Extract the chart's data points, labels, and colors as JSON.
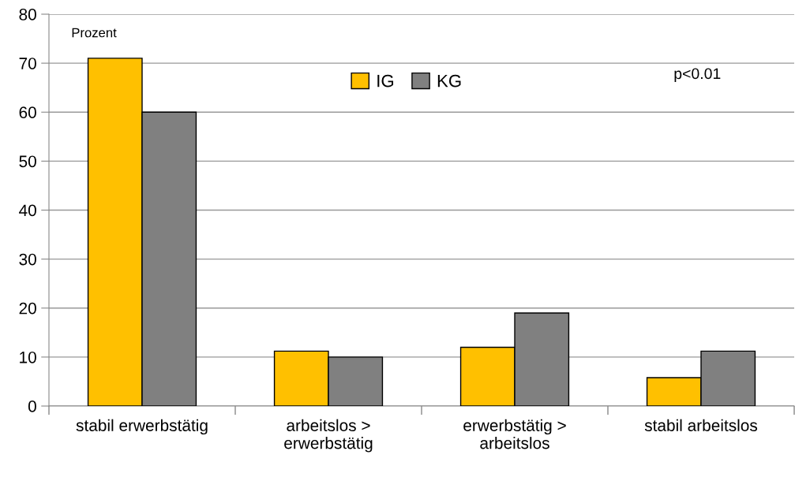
{
  "chart_data": {
    "type": "bar",
    "categories": [
      "stabil erwerbstätig",
      "arbeitslos >\nerwerbstätig",
      "erwerbstätig >\narbeitslos",
      "stabil arbeitslos"
    ],
    "series": [
      {
        "name": "IG",
        "color": "#ffc000",
        "values": [
          71,
          11.2,
          12,
          5.8
        ]
      },
      {
        "name": "KG",
        "color": "#808080",
        "values": [
          60,
          10,
          19,
          11.2
        ]
      }
    ],
    "ylabel": "Prozent",
    "annotations": [
      "p<0.01"
    ],
    "ylim": [
      0,
      80
    ],
    "yticks": [
      0,
      10,
      20,
      30,
      40,
      50,
      60,
      70,
      80
    ],
    "grid": "y",
    "legend": "top"
  }
}
